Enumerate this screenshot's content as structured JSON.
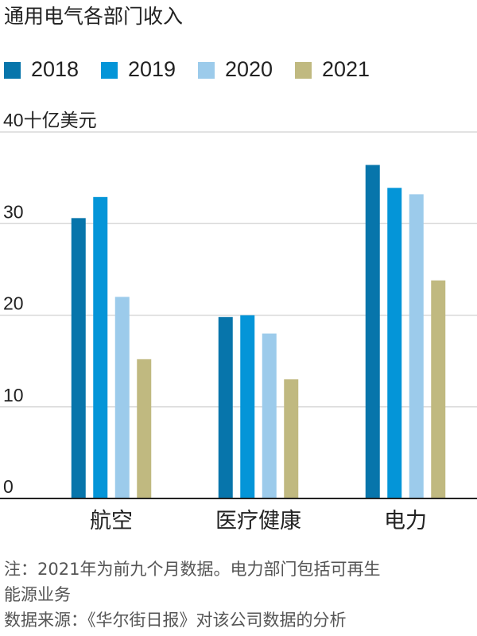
{
  "page": {
    "title": "通用电气各部门收入",
    "notes": [
      "注：2021年为前九个月数据。电力部门包括可再生",
      "能源业务",
      "数据来源：《华尔街日报》对该公司数据的分析"
    ]
  },
  "colors": {
    "2018": "#0775ab",
    "2019": "#0495d8",
    "2020": "#9ccbeb",
    "2021": "#c0b980",
    "grid": "#d9d9d9",
    "axis": "#222222",
    "text": "#222222",
    "note": "#555555"
  },
  "chart_data": {
    "type": "bar",
    "title": "通用电气各部门收入",
    "ylabel": "十亿美元",
    "ylim": [
      0,
      40
    ],
    "yticks": [
      {
        "value": 0,
        "label": "0"
      },
      {
        "value": 10,
        "label": "10"
      },
      {
        "value": 20,
        "label": "20"
      },
      {
        "value": 30,
        "label": "30"
      },
      {
        "value": 40,
        "label": "40十亿美元"
      }
    ],
    "grid": true,
    "legend_position": "top-left",
    "categories": [
      "航空",
      "医疗健康",
      "电力"
    ],
    "series": [
      {
        "name": "2018",
        "values": [
          30.6,
          19.8,
          36.4
        ]
      },
      {
        "name": "2019",
        "values": [
          32.9,
          20.0,
          33.9
        ]
      },
      {
        "name": "2020",
        "values": [
          22.0,
          18.0,
          33.2
        ]
      },
      {
        "name": "2021",
        "values": [
          15.2,
          13.0,
          23.8
        ]
      }
    ]
  }
}
